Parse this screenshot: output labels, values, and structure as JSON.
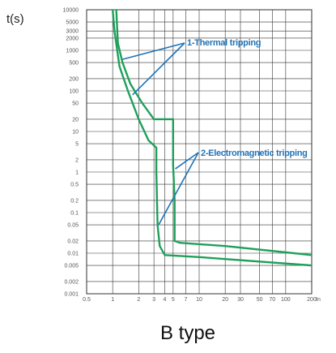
{
  "chart_data": {
    "type": "line",
    "title": "B type",
    "ylabel": "t(s)",
    "xlabel": "",
    "x_unit_label": "In",
    "x_scale": "log",
    "y_scale": "log",
    "xlim": [
      0.5,
      200
    ],
    "ylim": [
      0.001,
      10000
    ],
    "x_ticks": [
      {
        "value": 0.5,
        "label": "0.5"
      },
      {
        "value": 1,
        "label": "1"
      },
      {
        "value": 2,
        "label": "2"
      },
      {
        "value": 3,
        "label": "3"
      },
      {
        "value": 4,
        "label": "4"
      },
      {
        "value": 5,
        "label": "5"
      },
      {
        "value": 7,
        "label": "7"
      },
      {
        "value": 10,
        "label": "10"
      },
      {
        "value": 20,
        "label": "20"
      },
      {
        "value": 30,
        "label": "30"
      },
      {
        "value": 50,
        "label": "50"
      },
      {
        "value": 70,
        "label": "70"
      },
      {
        "value": 100,
        "label": "100"
      },
      {
        "value": 200,
        "label": "200"
      }
    ],
    "y_ticks": [
      {
        "value": 10000,
        "label": "10000"
      },
      {
        "value": 5000,
        "label": "5000"
      },
      {
        "value": 3000,
        "label": "3000"
      },
      {
        "value": 2000,
        "label": "2000"
      },
      {
        "value": 1000,
        "label": "1000"
      },
      {
        "value": 500,
        "label": "500"
      },
      {
        "value": 200,
        "label": "200"
      },
      {
        "value": 100,
        "label": "100"
      },
      {
        "value": 50,
        "label": "50"
      },
      {
        "value": 20,
        "label": "20"
      },
      {
        "value": 10,
        "label": "10"
      },
      {
        "value": 5,
        "label": "5"
      },
      {
        "value": 2,
        "label": "2"
      },
      {
        "value": 1,
        "label": "1"
      },
      {
        "value": 0.5,
        "label": "0.5"
      },
      {
        "value": 0.2,
        "label": "0.2"
      },
      {
        "value": 0.1,
        "label": "0.1"
      },
      {
        "value": 0.05,
        "label": "0.05"
      },
      {
        "value": 0.02,
        "label": "0.02"
      },
      {
        "value": 0.01,
        "label": "0.01"
      },
      {
        "value": 0.005,
        "label": "0.005"
      },
      {
        "value": 0.002,
        "label": "0.002"
      },
      {
        "value": 0.001,
        "label": "0.001"
      }
    ],
    "grid": true,
    "series": [
      {
        "color": "#1fa05a",
        "points": [
          [
            1.1,
            10000
          ],
          [
            1.15,
            1500
          ],
          [
            1.3,
            500
          ],
          [
            1.6,
            150
          ],
          [
            2.2,
            50
          ],
          [
            3,
            20
          ],
          [
            5,
            20
          ],
          [
            5,
            1.5
          ],
          [
            5.2,
            0.2
          ],
          [
            5.2,
            0.02
          ],
          [
            6,
            0.018
          ],
          [
            20,
            0.015
          ],
          [
            200,
            0.009
          ]
        ]
      },
      {
        "color": "#1fa05a",
        "points": [
          [
            1,
            10000
          ],
          [
            1.05,
            3000
          ],
          [
            1.2,
            400
          ],
          [
            1.5,
            100
          ],
          [
            2,
            20
          ],
          [
            2.6,
            6
          ],
          [
            3.2,
            4
          ],
          [
            3.2,
            1
          ],
          [
            3.3,
            0.05
          ],
          [
            3.5,
            0.015
          ],
          [
            4,
            0.009
          ],
          [
            10,
            0.008
          ],
          [
            200,
            0.005
          ]
        ]
      }
    ],
    "annotations": [
      {
        "text": "1-Thermal tripping",
        "pointer_targets": [
          [
            1.3,
            600
          ],
          [
            1.7,
            80
          ]
        ]
      },
      {
        "text": "2-Electromagnetic tripping",
        "pointer_targets": [
          [
            5.3,
            1.2
          ],
          [
            3.4,
            0.05
          ]
        ]
      }
    ],
    "colors": {
      "curve": "#1fa05a",
      "annotation": "#1f73b7",
      "grid": "#333333"
    }
  }
}
